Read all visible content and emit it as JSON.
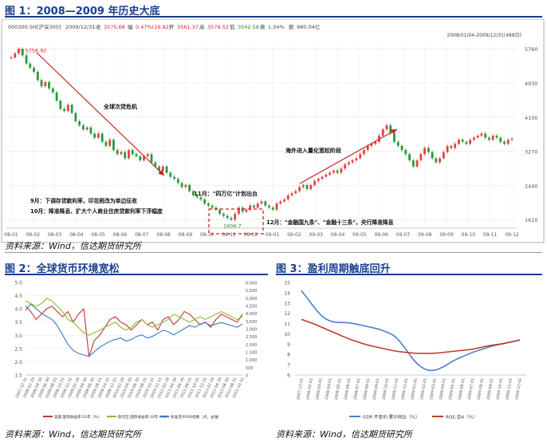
{
  "fig1": {
    "title": "图 1：2008—2009 年历史大底",
    "source": "资料来源：Wind，信达期货研究所",
    "quote": {
      "code": "000300.SH[沪深300]",
      "date": "2009/12/31",
      "close_label": "收",
      "close": "3575.68",
      "chg_label": "幅",
      "chg": "0.47%(16.82)",
      "open_label": "开",
      "open": "3561.37",
      "high_label": "高",
      "high": "3579.52",
      "low_label": "低",
      "low": "3542.58",
      "turnover_label": "换",
      "turnover": "1.04%",
      "amount_label": "额",
      "amount": "980.04亿",
      "range": "2008/01/04-2009/12/31(488日)"
    }
  },
  "fig2": {
    "title": "图 2：全球货币环境宽松",
    "source": "资料来源：Wind，信达期货研究所"
  },
  "fig3": {
    "title": "图 3：盈利周期触底回升",
    "source": "资料来源：Wind，信达期货研究所"
  },
  "chart_data": [
    {
      "type": "line",
      "title": "",
      "x_ticks": [
        "08-01",
        "08-02",
        "08-03",
        "08-04",
        "08-05",
        "08-06",
        "08-07",
        "08-08",
        "08-09",
        "08-10",
        "08-11",
        "08-12",
        "09-01",
        "09-02",
        "09-03",
        "09-04",
        "09-05",
        "09-06",
        "09-07",
        "09-08",
        "09-09",
        "09-10",
        "09-11",
        "09-12"
      ],
      "y_ticks": [
        1610,
        2440,
        3270,
        4100,
        4930,
        5760
      ],
      "ylim": [
        1400,
        5900
      ],
      "series": [
        {
          "values": [
            5550,
            5650,
            5757,
            5600,
            5400,
            5300,
            5200,
            5000,
            4850,
            4950,
            4800,
            4700,
            4500,
            4300,
            4250,
            4400,
            4200,
            4000,
            3900,
            3800,
            3850,
            3700,
            3600,
            3700,
            3500,
            3400,
            3550,
            3300,
            3200,
            3250,
            3100,
            3300,
            3200,
            3150,
            3050,
            3150,
            3200,
            3000,
            2900,
            2800,
            2900,
            2750,
            2650,
            2600,
            2500,
            2400,
            2450,
            2300,
            2200,
            2150,
            2100,
            2000,
            1950,
            1900,
            1850,
            1750,
            1700,
            1650,
            1607,
            1750,
            1900,
            1800,
            1850,
            1950,
            1900,
            2000,
            2050,
            1950,
            1900,
            1850,
            2000,
            2050,
            2100,
            2200,
            2250,
            2300,
            2400,
            2450,
            2350,
            2450,
            2550,
            2600,
            2650,
            2700,
            2750,
            2800,
            2750,
            2850,
            2950,
            3000,
            3050,
            3100,
            3200,
            3300,
            3400,
            3450,
            3500,
            3650,
            3800,
            3900,
            3700,
            3500,
            3400,
            3300,
            3200,
            3050,
            2900,
            3050,
            3200,
            3350,
            3250,
            3100,
            3000,
            3100,
            3250,
            3400,
            3350,
            3450,
            3550,
            3500,
            3450,
            3550,
            3600,
            3650,
            3700,
            3600,
            3550,
            3650,
            3600,
            3500,
            3450,
            3550,
            3576
          ],
          "color": "#e04343"
        }
      ],
      "annotations": [
        {
          "text": "5756.92",
          "x_index": 2,
          "y": 5757
        },
        {
          "text": "1606.7",
          "x_index": 58,
          "y": 1607
        },
        {
          "text": "全球次贷危机"
        },
        {
          "text": "11月：\"四万亿\"计划出台"
        },
        {
          "text": "海外进入量化宽松阶段"
        },
        {
          "text": "9月：下调存贷款利率，印花税改为单边征收"
        },
        {
          "text": "10月：降准降息、扩大个人商业住房贷款利率下浮幅度"
        },
        {
          "text": "12月：\"金融国九条\"、\"金融十三条\"，央行降准降息"
        }
      ]
    },
    {
      "type": "line",
      "title": "",
      "x_ticks": [
        "2007-12-31",
        "2008-02-29",
        "2008-04-30",
        "2008-06-30",
        "2008-08-31",
        "2008-10-31",
        "2008-12-31",
        "2009-02-28",
        "2009-04-30",
        "2009-06-30",
        "2009-08-31",
        "2009-10-31",
        "2009-12-31",
        "2010-02-28",
        "2010-04-30",
        "2010-06-30",
        "2010-08-31",
        "2010-10-31",
        "2010-12-31",
        "2011-02-28",
        "2011-04-30",
        "2011-06-30",
        "2011-08-31",
        "2011-10-31",
        "2011-12-31",
        "2012-02-29",
        "2012-04-30",
        "2012-06-30",
        "2012-08-31",
        "2012-10-31"
      ],
      "ylim_left": [
        1.5,
        5.0
      ],
      "y_ticks_left": [
        "1.5",
        "2.0",
        "2.5",
        "3.0",
        "3.5",
        "4.0",
        "4.5",
        "5.0"
      ],
      "ylim_right": [
        0,
        6000
      ],
      "y_ticks_right": [
        "0",
        "500",
        "1,000",
        "1,500",
        "2,000",
        "2,500",
        "3,000",
        "3,500",
        "4,000",
        "4,500",
        "5,000",
        "5,500",
        "6,000"
      ],
      "series": [
        {
          "name": "美国:国债收益率:10年（%）",
          "color": "#c0392b",
          "values": [
            4.1,
            3.9,
            3.6,
            3.8,
            4.0,
            4.1,
            3.9,
            3.7,
            3.9,
            3.5,
            3.8,
            4.0,
            2.2,
            2.8,
            3.0,
            3.3,
            3.6,
            3.7,
            3.5,
            3.4,
            3.2,
            3.4,
            3.6,
            3.4,
            3.5,
            3.2,
            3.6,
            3.7,
            3.4,
            3.6,
            3.9,
            3.8,
            3.6,
            3.4,
            3.5,
            3.3,
            3.6,
            3.8,
            3.7,
            3.6,
            3.5,
            3.8
          ]
        },
        {
          "name": "欧元区:国债收益率:10年（%）",
          "color": "#8bbd3c",
          "values": [
            4.3,
            4.2,
            4.1,
            4.2,
            4.4,
            4.3,
            4.1,
            3.9,
            3.6,
            3.5,
            3.3,
            3.1,
            3.0,
            3.1,
            3.2,
            3.3,
            3.4,
            3.5,
            3.3,
            3.2,
            3.3,
            3.5,
            3.6,
            3.4,
            3.3,
            3.4,
            3.5,
            3.6,
            3.8,
            3.7,
            3.6,
            3.5,
            3.6,
            3.7,
            3.6,
            3.7,
            3.8,
            3.9,
            3.8,
            3.7,
            3.6,
            3.7
          ]
        },
        {
          "name": "标准普尔500指数（点，右轴）",
          "color": "#3a78c2",
          "values": [
            4200,
            4600,
            4300,
            4000,
            3800,
            3600,
            3200,
            2600,
            2000,
            1600,
            1400,
            1300,
            1200,
            1500,
            1800,
            2000,
            2200,
            2300,
            2400,
            2200,
            2300,
            2500,
            2600,
            2400,
            2500,
            2700,
            2900,
            2800,
            2600,
            2800,
            3000,
            3200,
            3100,
            3300,
            3400,
            3200,
            3300,
            3400,
            3300,
            3200,
            3100,
            3300
          ]
        }
      ]
    },
    {
      "type": "line",
      "title": "",
      "x_ticks": [
        "2007-12-01",
        "2008-03-01",
        "2008-06-01",
        "2008-09-01",
        "2008-12-01",
        "2009-03-01",
        "2009-06-01",
        "2009-09-01",
        "2009-12-01"
      ],
      "x_ticks_all": [
        "2007-12-01",
        "2008-02-01",
        "2008-03-01",
        "2008-04-01",
        "2008-05-01",
        "2008-06-01",
        "2008-07-01",
        "2008-08-01",
        "2008-09-01",
        "2008-10-01",
        "2008-11-01",
        "2008-12-01",
        "2009-01-01",
        "2009-02-01",
        "2009-03-01",
        "2009-04-01",
        "2009-05-01",
        "2009-06-01",
        "2009-07-01",
        "2009-08-01",
        "2009-09-01",
        "2009-10-01",
        "2009-11-01",
        "2009-12-01"
      ],
      "ylim": [
        6,
        15
      ],
      "y_ticks": [
        "6",
        "7",
        "8",
        "9",
        "10",
        "11",
        "12",
        "13",
        "14",
        "15"
      ],
      "series": [
        {
          "name": "GDP:不变价:累计同比（%）",
          "color": "#4a7fc8",
          "values": [
            14.2,
            13.0,
            11.8,
            11.2,
            11.1,
            11.1,
            10.9,
            10.7,
            10.5,
            10.2,
            9.7,
            8.5,
            7.2,
            6.5,
            6.4,
            6.8,
            7.4,
            7.8,
            8.2,
            8.5,
            8.8,
            9.0,
            9.2,
            9.4
          ]
        },
        {
          "name": "ROE:全A（%）",
          "color": "#c0392b",
          "values": [
            11.4,
            11.1,
            10.7,
            10.3,
            9.9,
            9.5,
            9.2,
            8.9,
            8.7,
            8.5,
            8.3,
            8.2,
            8.1,
            8.1,
            8.1,
            8.2,
            8.3,
            8.4,
            8.5,
            8.7,
            8.9,
            9.0,
            9.2,
            9.4
          ]
        }
      ]
    }
  ]
}
